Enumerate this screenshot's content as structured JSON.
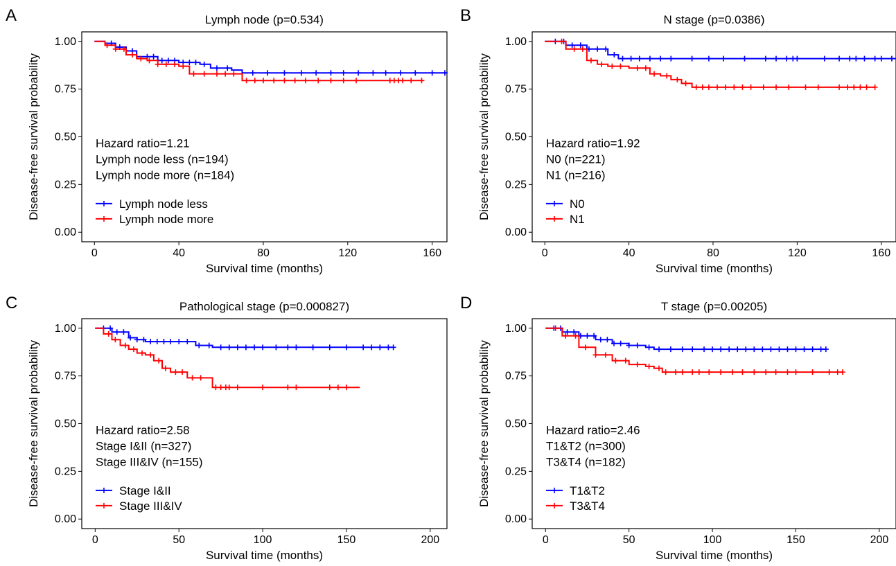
{
  "figure": {
    "panels": [
      {
        "letter": "A",
        "title": "Lymph node (p=0.534)"
      },
      {
        "letter": "B",
        "title": "N stage (p=0.0386)"
      },
      {
        "letter": "C",
        "title": "Pathological stage (p=0.000827)"
      },
      {
        "letter": "D",
        "title": "T stage (p=0.00205)"
      }
    ]
  },
  "chart_data": [
    {
      "type": "line",
      "panel": "A",
      "title": "Lymph node (p=0.534)",
      "xlabel": "Survival time (months)",
      "ylabel": "Disease-free survival probability",
      "xlim": [
        -6,
        167
      ],
      "ylim": [
        -0.05,
        1.05
      ],
      "xticks": [
        0,
        40,
        80,
        120,
        160
      ],
      "yticks": [
        0,
        0.25,
        0.5,
        0.75,
        1.0
      ],
      "xtick_labels": [
        "0",
        "40",
        "80",
        "120",
        "160"
      ],
      "ytick_labels": [
        "0.00",
        "0.25",
        "0.50",
        "0.75",
        "1.00"
      ],
      "grid": false,
      "legend_position": "bottom-left",
      "annotations": [
        "Hazard ratio=1.21",
        "Lymph node less (n=194)",
        "Lymph node more (n=184)"
      ],
      "series": [
        {
          "name": "Lymph node less",
          "color": "#0000ff",
          "x": [
            0,
            5,
            10,
            15,
            20,
            30,
            40,
            50,
            55,
            65,
            70,
            80,
            100,
            120,
            140,
            167
          ],
          "y": [
            1.0,
            0.99,
            0.97,
            0.95,
            0.92,
            0.9,
            0.89,
            0.88,
            0.86,
            0.85,
            0.835,
            0.835,
            0.835,
            0.835,
            0.835,
            0.835
          ],
          "censor_x": [
            8,
            12,
            18,
            25,
            28,
            32,
            35,
            38,
            42,
            45,
            48,
            52,
            58,
            63,
            75,
            82,
            90,
            98,
            105,
            112,
            118,
            125,
            132,
            138,
            145,
            152,
            160,
            166
          ]
        },
        {
          "name": "Lymph node more",
          "color": "#ff0000",
          "x": [
            0,
            5,
            10,
            15,
            20,
            25,
            30,
            40,
            45,
            50,
            60,
            68,
            70,
            80,
            100,
            120,
            140,
            156
          ],
          "y": [
            1.0,
            0.98,
            0.96,
            0.93,
            0.91,
            0.9,
            0.88,
            0.87,
            0.83,
            0.83,
            0.83,
            0.83,
            0.795,
            0.795,
            0.795,
            0.795,
            0.795,
            0.795
          ],
          "censor_x": [
            6,
            10,
            14,
            18,
            22,
            26,
            30,
            34,
            38,
            42,
            47,
            52,
            58,
            62,
            66,
            72,
            76,
            80,
            85,
            90,
            95,
            100,
            106,
            112,
            118,
            124,
            140,
            142,
            144,
            146,
            150,
            155
          ]
        }
      ]
    },
    {
      "type": "line",
      "panel": "B",
      "title": "N stage (p=0.0386)",
      "xlabel": "Survival time (months)",
      "ylabel": "Disease-free survival probability",
      "xlim": [
        -6,
        167
      ],
      "ylim": [
        -0.05,
        1.05
      ],
      "xticks": [
        0,
        40,
        80,
        120,
        160
      ],
      "yticks": [
        0,
        0.25,
        0.5,
        0.75,
        1.0
      ],
      "xtick_labels": [
        "0",
        "40",
        "80",
        "120",
        "160"
      ],
      "ytick_labels": [
        "0.00",
        "0.25",
        "0.50",
        "0.75",
        "1.00"
      ],
      "grid": false,
      "legend_position": "bottom-left",
      "annotations": [
        "Hazard ratio=1.92",
        "N0 (n=221)",
        "N1 (n=216)"
      ],
      "series": [
        {
          "name": "N0",
          "color": "#0000ff",
          "x": [
            0,
            10,
            20,
            30,
            35,
            40,
            60,
            100,
            140,
            167
          ],
          "y": [
            1.0,
            0.98,
            0.96,
            0.93,
            0.91,
            0.91,
            0.91,
            0.91,
            0.91,
            0.91
          ],
          "censor_x": [
            5,
            9,
            13,
            17,
            21,
            25,
            29,
            33,
            37,
            41,
            45,
            50,
            55,
            60,
            70,
            78,
            85,
            95,
            105,
            110,
            115,
            118,
            120,
            133,
            140,
            145,
            148,
            152,
            157,
            160,
            165
          ]
        },
        {
          "name": "N1",
          "color": "#ff0000",
          "x": [
            0,
            10,
            20,
            25,
            30,
            40,
            50,
            55,
            60,
            65,
            70,
            80,
            120,
            157
          ],
          "y": [
            1.0,
            0.96,
            0.9,
            0.88,
            0.87,
            0.86,
            0.83,
            0.82,
            0.8,
            0.78,
            0.76,
            0.76,
            0.76,
            0.76
          ],
          "censor_x": [
            8,
            14,
            18,
            22,
            27,
            32,
            36,
            44,
            48,
            52,
            58,
            63,
            67,
            72,
            75,
            78,
            82,
            86,
            90,
            94,
            98,
            104,
            110,
            116,
            124,
            130,
            140,
            144,
            147,
            150,
            153,
            157
          ]
        }
      ]
    },
    {
      "type": "line",
      "panel": "C",
      "title": "Pathological stage (p=0.000827)",
      "xlabel": "Survival time (months)",
      "ylabel": "Disease-free survival probability",
      "xlim": [
        -8,
        210
      ],
      "ylim": [
        -0.05,
        1.05
      ],
      "xticks": [
        0,
        50,
        100,
        150,
        200
      ],
      "yticks": [
        0,
        0.25,
        0.5,
        0.75,
        1.0
      ],
      "xtick_labels": [
        "0",
        "50",
        "100",
        "150",
        "200"
      ],
      "ytick_labels": [
        "0.00",
        "0.25",
        "0.50",
        "0.75",
        "1.00"
      ],
      "grid": false,
      "legend_position": "bottom-left",
      "annotations": [
        "Hazard ratio=2.58",
        "Stage I&II (n=327)",
        "Stage III&IV (n=155)"
      ],
      "series": [
        {
          "name": "Stage I&II",
          "color": "#0000ff",
          "x": [
            0,
            10,
            20,
            25,
            30,
            50,
            60,
            70,
            100,
            150,
            178
          ],
          "y": [
            1.0,
            0.98,
            0.95,
            0.94,
            0.93,
            0.93,
            0.91,
            0.9,
            0.9,
            0.9,
            0.9
          ],
          "censor_x": [
            5,
            9,
            13,
            17,
            21,
            25,
            29,
            33,
            37,
            41,
            45,
            50,
            55,
            62,
            68,
            75,
            80,
            85,
            90,
            95,
            100,
            108,
            115,
            120,
            130,
            140,
            150,
            160,
            165,
            170,
            175,
            178
          ]
        },
        {
          "name": "Stage III&IV",
          "color": "#ff0000",
          "x": [
            0,
            5,
            10,
            15,
            20,
            25,
            30,
            35,
            40,
            45,
            55,
            60,
            68,
            70,
            100,
            158
          ],
          "y": [
            1.0,
            0.97,
            0.94,
            0.91,
            0.89,
            0.87,
            0.86,
            0.83,
            0.79,
            0.77,
            0.74,
            0.74,
            0.74,
            0.69,
            0.69,
            0.69
          ],
          "censor_x": [
            8,
            12,
            18,
            23,
            28,
            33,
            38,
            42,
            48,
            52,
            58,
            63,
            72,
            75,
            78,
            80,
            85,
            100,
            115,
            120,
            140,
            145,
            150
          ]
        }
      ]
    },
    {
      "type": "line",
      "panel": "D",
      "title": "T stage (p=0.00205)",
      "xlabel": "Survival time (months)",
      "ylabel": "Disease-free survival probability",
      "xlim": [
        -8,
        210
      ],
      "ylim": [
        -0.05,
        1.05
      ],
      "xticks": [
        0,
        50,
        100,
        150,
        200
      ],
      "yticks": [
        0,
        0.25,
        0.5,
        0.75,
        1.0
      ],
      "xtick_labels": [
        "0",
        "50",
        "100",
        "150",
        "200"
      ],
      "ytick_labels": [
        "0.00",
        "0.25",
        "0.50",
        "0.75",
        "1.00"
      ],
      "grid": false,
      "legend_position": "bottom-left",
      "annotations": [
        "Hazard ratio=2.46",
        "T1&T2 (n=300)",
        "T3&T4 (n=182)"
      ],
      "series": [
        {
          "name": "T1&T2",
          "color": "#0000ff",
          "x": [
            0,
            10,
            20,
            30,
            40,
            50,
            60,
            65,
            100,
            150,
            168
          ],
          "y": [
            1.0,
            0.98,
            0.96,
            0.94,
            0.92,
            0.91,
            0.9,
            0.89,
            0.89,
            0.89,
            0.89
          ],
          "censor_x": [
            5,
            9,
            13,
            17,
            21,
            25,
            29,
            33,
            37,
            41,
            45,
            50,
            55,
            62,
            68,
            75,
            82,
            88,
            95,
            100,
            105,
            110,
            115,
            120,
            125,
            130,
            135,
            140,
            145,
            150,
            155,
            160,
            165,
            168
          ]
        },
        {
          "name": "T3&T4",
          "color": "#ff0000",
          "x": [
            0,
            10,
            20,
            30,
            40,
            50,
            60,
            65,
            70,
            100,
            150,
            178
          ],
          "y": [
            1.0,
            0.96,
            0.9,
            0.86,
            0.83,
            0.81,
            0.8,
            0.79,
            0.77,
            0.77,
            0.77,
            0.77
          ],
          "censor_x": [
            6,
            12,
            18,
            24,
            30,
            36,
            42,
            48,
            55,
            62,
            68,
            72,
            78,
            82,
            88,
            92,
            98,
            105,
            112,
            118,
            125,
            132,
            138,
            145,
            150,
            160,
            170,
            175,
            178
          ]
        }
      ]
    }
  ]
}
